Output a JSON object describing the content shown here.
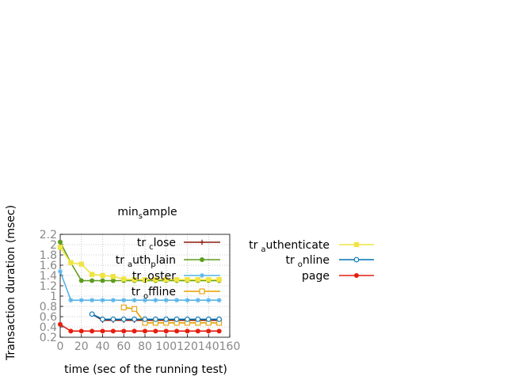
{
  "chart_data": {
    "type": "line",
    "title": "min_sample",
    "xlabel": "time (sec of the running test)",
    "ylabel": "Transaction duration (msec)",
    "xlim": [
      0,
      160
    ],
    "ylim": [
      0.2,
      2.2
    ],
    "x_ticks": [
      "0",
      "20",
      "40",
      "60",
      "80",
      "100",
      "120",
      "140",
      "160"
    ],
    "y_ticks": [
      "0.2",
      "0.4",
      "0.6",
      "0.8",
      "1",
      "1.2",
      "1.4",
      "1.6",
      "1.8",
      "2",
      "2.2"
    ],
    "grid": true,
    "legend_position": "top-right and right of plot",
    "series": [
      {
        "name": "tr_close",
        "color": "#8b1a0e",
        "marker": "plus",
        "x": [
          30,
          40,
          50,
          60,
          70,
          80,
          90,
          100,
          110,
          120,
          130,
          140,
          150
        ],
        "y": [
          0.65,
          0.53,
          0.53,
          0.53,
          0.53,
          0.53,
          0.53,
          0.53,
          0.53,
          0.53,
          0.53,
          0.53,
          0.53
        ]
      },
      {
        "name": "tr_auth_plain",
        "color": "#5e9c1f",
        "marker": "filled-circle",
        "x": [
          0,
          10,
          20,
          30,
          40,
          50,
          60,
          70,
          80,
          90,
          100,
          110,
          120,
          130,
          140,
          150
        ],
        "y": [
          2.05,
          1.65,
          1.3,
          1.3,
          1.3,
          1.3,
          1.3,
          1.3,
          1.3,
          1.3,
          1.3,
          1.3,
          1.3,
          1.3,
          1.3,
          1.3
        ]
      },
      {
        "name": "tr_roster",
        "color": "#56b4e9",
        "marker": "star",
        "x": [
          0,
          10,
          20,
          30,
          40,
          50,
          60,
          70,
          80,
          90,
          100,
          110,
          120,
          130,
          140,
          150
        ],
        "y": [
          1.48,
          0.92,
          0.92,
          0.92,
          0.92,
          0.92,
          0.92,
          0.92,
          0.92,
          0.92,
          0.92,
          0.92,
          0.92,
          0.92,
          0.92,
          0.92
        ]
      },
      {
        "name": "tr_offline",
        "color": "#e69f00",
        "marker": "open-square",
        "x": [
          60,
          70,
          80,
          90,
          100,
          110,
          120,
          130,
          140,
          150
        ],
        "y": [
          0.78,
          0.75,
          0.48,
          0.48,
          0.48,
          0.48,
          0.48,
          0.48,
          0.48,
          0.48
        ]
      },
      {
        "name": "tr_authenticate",
        "color": "#f0e442",
        "marker": "filled-square",
        "x": [
          0,
          10,
          20,
          30,
          40,
          50,
          60,
          70,
          80,
          90,
          100,
          110,
          120,
          130,
          140,
          150
        ],
        "y": [
          1.95,
          1.65,
          1.62,
          1.42,
          1.4,
          1.38,
          1.33,
          1.32,
          1.32,
          1.32,
          1.32,
          1.32,
          1.32,
          1.32,
          1.32,
          1.32
        ]
      },
      {
        "name": "tr_online",
        "color": "#0072b2",
        "marker": "open-circle",
        "x": [
          30,
          40,
          50,
          60,
          70,
          80,
          90,
          100,
          110,
          120,
          130,
          140,
          150
        ],
        "y": [
          0.65,
          0.55,
          0.55,
          0.55,
          0.55,
          0.55,
          0.55,
          0.55,
          0.55,
          0.55,
          0.55,
          0.55,
          0.55
        ]
      },
      {
        "name": "page",
        "color": "#e51e10",
        "marker": "filled-circle",
        "x": [
          0,
          10,
          20,
          30,
          40,
          50,
          60,
          70,
          80,
          90,
          100,
          110,
          120,
          130,
          140,
          150
        ],
        "y": [
          0.45,
          0.32,
          0.32,
          0.32,
          0.32,
          0.32,
          0.32,
          0.32,
          0.32,
          0.32,
          0.32,
          0.32,
          0.32,
          0.32,
          0.32,
          0.32
        ]
      }
    ],
    "legend_labels": [
      {
        "main": "tr",
        "sub": "c",
        "rest": "lose"
      },
      {
        "main": "tr",
        "sub": "a",
        "rest": "uth",
        "sub2": "p",
        "rest2": "lain"
      },
      {
        "main": "tr",
        "sub": "r",
        "rest": "oster"
      },
      {
        "main": "tr",
        "sub": "o",
        "rest": "ffline"
      },
      {
        "main": "tr",
        "sub": "a",
        "rest": "uthenticate"
      },
      {
        "main": "tr",
        "sub": "o",
        "rest": "nline"
      },
      {
        "main": "page"
      }
    ]
  }
}
